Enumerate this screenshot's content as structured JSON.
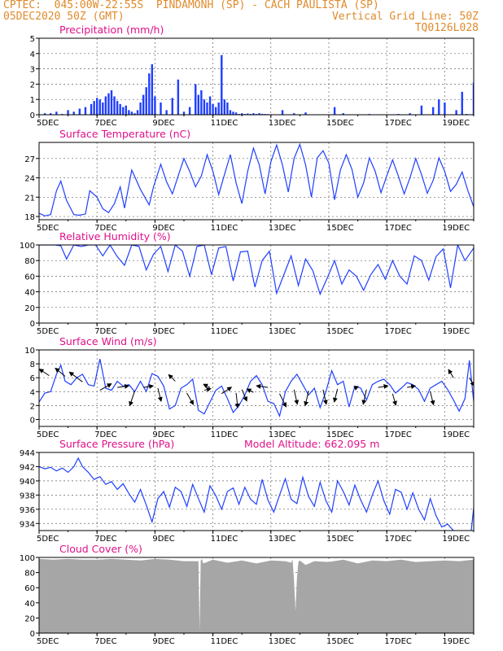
{
  "header": {
    "line1_left": "CPTEC:  045:00W-22:55S  PINDAMONH (SP) - CACH PAULISTA (SP)",
    "line2_left": "05DEC2020 50Z (GMT)",
    "line2_right": "Vertical Grid Line: 50Z",
    "line3_right": "TQ0126L028"
  },
  "colors": {
    "line": "#1f3fff",
    "bar": "#1f3fff",
    "cloud": "#a6a6a6",
    "title": "#e0108a",
    "header": "#e08a2c"
  },
  "chart_data": [
    {
      "type": "bar",
      "title": "Precipitation (mm/h)",
      "ylim": [
        0,
        5
      ],
      "yticks": [
        0,
        1,
        2,
        3,
        4,
        5
      ],
      "xticks": [
        "5DEC",
        "7DEC",
        "9DEC",
        "11DEC",
        "13DEC",
        "15DEC",
        "17DEC",
        "19DEC"
      ],
      "xlim_days": [
        0,
        15
      ],
      "x_days": [
        0.2,
        0.4,
        0.6,
        0.8,
        1.0,
        1.2,
        1.4,
        1.6,
        1.8,
        1.9,
        2.0,
        2.1,
        2.2,
        2.3,
        2.4,
        2.5,
        2.6,
        2.7,
        2.8,
        2.9,
        3.0,
        3.1,
        3.2,
        3.3,
        3.4,
        3.5,
        3.6,
        3.7,
        3.8,
        3.9,
        4.0,
        4.2,
        4.4,
        4.6,
        4.8,
        5.0,
        5.2,
        5.4,
        5.5,
        5.6,
        5.7,
        5.8,
        5.9,
        6.0,
        6.1,
        6.2,
        6.3,
        6.4,
        6.5,
        6.6,
        6.7,
        6.8,
        6.9,
        7.0,
        7.1,
        7.2,
        7.3,
        7.4,
        7.5,
        7.6,
        7.7,
        7.8,
        7.9,
        8.4,
        8.8,
        9.2,
        10.2,
        10.5,
        11.4,
        12.4,
        12.8,
        13.2,
        13.6,
        13.8,
        14.0,
        14.4,
        14.6,
        14.75,
        15.0
      ],
      "values": [
        0.1,
        0.1,
        0.2,
        0.05,
        0.3,
        0.2,
        0.4,
        0.5,
        0.7,
        0.9,
        1.1,
        1.0,
        0.8,
        1.2,
        1.4,
        1.6,
        1.2,
        0.9,
        0.7,
        0.5,
        0.6,
        0.3,
        0.2,
        0.1,
        0.3,
        0.8,
        1.3,
        1.8,
        2.7,
        3.3,
        1.2,
        0.8,
        0.3,
        1.1,
        2.3,
        0.2,
        0.5,
        2.0,
        1.3,
        1.6,
        1.0,
        0.8,
        1.2,
        0.7,
        0.5,
        0.8,
        3.9,
        1.0,
        0.8,
        0.3,
        0.2,
        0.15,
        0.05,
        0.1,
        0.05,
        0.08,
        0.05,
        0.1,
        0.05,
        0.1,
        0.06,
        0.05,
        0.04,
        0.3,
        0.1,
        0.15,
        0.5,
        0.1,
        0.05,
        0.05,
        0.1,
        0.6,
        0.5,
        1.0,
        0.8,
        0.3,
        1.5,
        0.05,
        2.1
      ]
    },
    {
      "type": "line",
      "title": "Surface Temperature (nC)",
      "ylim": [
        17.5,
        29.5
      ],
      "yticks": [
        18,
        21,
        24,
        27
      ],
      "xticks": [
        "5DEC",
        "7DEC",
        "9DEC",
        "11DEC",
        "13DEC",
        "15DEC",
        "17DEC",
        "19DEC"
      ],
      "xlim_days": [
        0,
        15
      ],
      "x_days": [
        0,
        0.2,
        0.4,
        0.6,
        0.75,
        0.95,
        1.2,
        1.4,
        1.6,
        1.75,
        2.0,
        2.2,
        2.4,
        2.6,
        2.8,
        2.95,
        3.2,
        3.5,
        3.8,
        3.95,
        4.2,
        4.4,
        4.6,
        4.8,
        5.0,
        5.2,
        5.4,
        5.6,
        5.8,
        6.0,
        6.2,
        6.4,
        6.6,
        6.8,
        7.0,
        7.2,
        7.4,
        7.6,
        7.8,
        8.0,
        8.2,
        8.4,
        8.6,
        8.8,
        9.0,
        9.2,
        9.4,
        9.6,
        9.8,
        10.0,
        10.2,
        10.4,
        10.6,
        10.8,
        11.0,
        11.2,
        11.4,
        11.6,
        11.8,
        12.0,
        12.2,
        12.4,
        12.6,
        12.8,
        13.0,
        13.2,
        13.4,
        13.6,
        13.8,
        14.0,
        14.2,
        14.4,
        14.6,
        14.8,
        15.0
      ],
      "values": [
        18.5,
        18.1,
        18.3,
        22.0,
        23.5,
        20.5,
        18.3,
        18.2,
        18.4,
        22.0,
        21.0,
        19.2,
        18.6,
        20.0,
        22.6,
        19.3,
        25.2,
        22.2,
        19.8,
        22.6,
        26.1,
        23.4,
        21.5,
        24.3,
        27.0,
        25.0,
        22.6,
        24.3,
        27.6,
        25.0,
        21.4,
        24.5,
        27.6,
        23.2,
        20.0,
        25.0,
        28.6,
        26.0,
        21.5,
        26.5,
        29.1,
        26.0,
        21.8,
        27.0,
        29.2,
        26.0,
        21.0,
        27.1,
        28.2,
        26.3,
        20.6,
        25.2,
        27.6,
        25.3,
        21.0,
        23.2,
        27.1,
        25.0,
        21.7,
        24.3,
        26.8,
        24.3,
        21.5,
        24.0,
        27.0,
        24.5,
        21.6,
        23.6,
        27.1,
        25.0,
        21.9,
        23.0,
        24.9,
        22.0,
        19.5
      ]
    },
    {
      "type": "line",
      "title": "Relative Humidity (%)",
      "ylim": [
        0,
        100
      ],
      "yticks": [
        0,
        20,
        40,
        60,
        80,
        100
      ],
      "xticks": [
        "5DEC",
        "7DEC",
        "9DEC",
        "11DEC",
        "13DEC",
        "15DEC",
        "17DEC",
        "19DEC"
      ],
      "xlim_days": [
        0,
        15
      ],
      "x_days": [
        0,
        0.3,
        0.55,
        0.75,
        0.95,
        1.2,
        1.45,
        1.7,
        1.95,
        2.2,
        2.45,
        2.7,
        2.95,
        3.2,
        3.45,
        3.7,
        3.95,
        4.2,
        4.45,
        4.7,
        4.95,
        5.2,
        5.45,
        5.7,
        5.95,
        6.2,
        6.45,
        6.7,
        6.95,
        7.2,
        7.45,
        7.7,
        7.95,
        8.2,
        8.45,
        8.7,
        8.95,
        9.2,
        9.45,
        9.7,
        9.95,
        10.2,
        10.45,
        10.7,
        10.95,
        11.2,
        11.45,
        11.7,
        11.95,
        12.2,
        12.45,
        12.7,
        12.95,
        13.2,
        13.45,
        13.7,
        13.95,
        14.2,
        14.45,
        14.7,
        15.0
      ],
      "values": [
        100,
        100,
        100,
        99,
        82,
        100,
        98,
        100,
        100,
        86,
        100,
        85,
        74,
        100,
        98,
        68,
        88,
        98,
        66,
        100,
        92,
        60,
        98,
        100,
        62,
        96,
        98,
        54,
        91,
        92,
        46,
        80,
        92,
        38,
        62,
        86,
        48,
        82,
        67,
        37,
        58,
        80,
        50,
        68,
        60,
        42,
        62,
        75,
        56,
        80,
        60,
        50,
        86,
        80,
        55,
        85,
        95,
        45,
        100,
        80,
        96
      ]
    },
    {
      "type": "line",
      "title": "Surface Wind (m/s)",
      "ylim": [
        -1,
        10
      ],
      "yticks": [
        0,
        2,
        4,
        6,
        8,
        10
      ],
      "xticks": [
        "5DEC",
        "7DEC",
        "9DEC",
        "11DEC",
        "13DEC",
        "15DEC",
        "17DEC",
        "19DEC"
      ],
      "xlim_days": [
        0,
        15
      ],
      "x_days": [
        0,
        0.2,
        0.4,
        0.6,
        0.75,
        0.9,
        1.1,
        1.3,
        1.5,
        1.7,
        1.9,
        2.1,
        2.3,
        2.5,
        2.7,
        2.9,
        3.1,
        3.3,
        3.5,
        3.7,
        3.9,
        4.1,
        4.3,
        4.5,
        4.7,
        4.9,
        5.1,
        5.3,
        5.5,
        5.7,
        5.9,
        6.1,
        6.3,
        6.5,
        6.7,
        6.9,
        7.1,
        7.3,
        7.5,
        7.7,
        7.9,
        8.1,
        8.3,
        8.5,
        8.7,
        8.9,
        9.1,
        9.3,
        9.5,
        9.7,
        9.9,
        10.1,
        10.3,
        10.5,
        10.7,
        10.9,
        11.1,
        11.3,
        11.5,
        11.7,
        11.9,
        12.1,
        12.3,
        12.5,
        12.7,
        12.9,
        13.1,
        13.3,
        13.5,
        13.7,
        13.9,
        14.1,
        14.3,
        14.5,
        14.7,
        14.85,
        15.0
      ],
      "values": [
        2.5,
        3.8,
        4.0,
        6.5,
        7.8,
        5.5,
        5.0,
        6.0,
        6.5,
        5.0,
        4.8,
        8.7,
        4.5,
        4.2,
        5.5,
        4.8,
        5.0,
        4.0,
        5.5,
        4.0,
        6.6,
        6.2,
        4.8,
        1.5,
        2.0,
        4.5,
        5.0,
        5.8,
        1.3,
        0.8,
        2.5,
        4.2,
        4.8,
        3.0,
        1.0,
        2.0,
        3.5,
        5.5,
        6.3,
        5.0,
        2.6,
        2.3,
        0.5,
        4.0,
        5.5,
        6.5,
        5.0,
        3.5,
        4.5,
        1.7,
        4.0,
        7.0,
        5.0,
        5.5,
        1.8,
        4.8,
        4.5,
        2.8,
        5.0,
        5.5,
        5.8,
        5.0,
        3.8,
        4.5,
        5.3,
        5.0,
        4.3,
        2.6,
        4.5,
        5.0,
        5.5,
        4.3,
        2.8,
        1.2,
        3.0,
        8.5,
        2.6
      ]
    },
    {
      "type": "line",
      "title": "Surface Pressure (hPa)",
      "annotation": "Model Altitude: 662.095 m",
      "ylim": [
        933,
        944
      ],
      "yticks": [
        934,
        936,
        938,
        940,
        942,
        944
      ],
      "xticks": [
        "5DEC",
        "7DEC",
        "9DEC",
        "11DEC",
        "13DEC",
        "15DEC",
        "17DEC",
        "19DEC"
      ],
      "xlim_days": [
        0,
        15
      ],
      "x_days": [
        0,
        0.2,
        0.4,
        0.6,
        0.8,
        1.0,
        1.2,
        1.35,
        1.5,
        1.7,
        1.9,
        2.1,
        2.3,
        2.5,
        2.7,
        2.9,
        3.1,
        3.3,
        3.5,
        3.7,
        3.9,
        4.1,
        4.3,
        4.5,
        4.7,
        4.9,
        5.1,
        5.3,
        5.5,
        5.7,
        5.9,
        6.1,
        6.3,
        6.5,
        6.7,
        6.9,
        7.1,
        7.3,
        7.5,
        7.7,
        7.9,
        8.1,
        8.3,
        8.5,
        8.7,
        8.9,
        9.1,
        9.3,
        9.5,
        9.7,
        9.9,
        10.1,
        10.3,
        10.5,
        10.7,
        10.9,
        11.1,
        11.3,
        11.5,
        11.7,
        11.9,
        12.1,
        12.3,
        12.5,
        12.7,
        12.9,
        13.1,
        13.3,
        13.5,
        13.7,
        13.9,
        14.1,
        14.3,
        14.5,
        14.7,
        14.9,
        15.0
      ],
      "values": [
        942.0,
        941.7,
        941.9,
        941.4,
        941.8,
        941.2,
        942.0,
        943.2,
        942.0,
        941.2,
        940.2,
        940.6,
        939.5,
        939.9,
        938.8,
        939.6,
        938.2,
        937.0,
        938.8,
        936.6,
        934.2,
        937.5,
        938.5,
        936.3,
        939.1,
        938.5,
        936.4,
        939.5,
        937.5,
        935.6,
        939.3,
        937.9,
        936.0,
        938.5,
        939.0,
        936.7,
        939.1,
        937.4,
        936.7,
        940.2,
        937.3,
        935.6,
        938.0,
        940.3,
        937.4,
        936.8,
        940.5,
        937.8,
        936.4,
        939.8,
        937.2,
        935.6,
        940.0,
        938.5,
        936.6,
        939.4,
        937.3,
        935.6,
        938.0,
        940.0,
        937.2,
        935.3,
        938.8,
        938.4,
        936.0,
        938.3,
        936.0,
        934.5,
        937.5,
        935.1,
        933.5,
        933.9,
        933.0,
        932.5,
        931.7,
        932.4,
        936.2
      ]
    },
    {
      "type": "area",
      "title": "Cloud Cover (%)",
      "ylim": [
        0,
        100
      ],
      "yticks": [
        0,
        20,
        40,
        60,
        80,
        100
      ],
      "xticks": [
        "5DEC",
        "7DEC",
        "9DEC",
        "11DEC",
        "13DEC",
        "15DEC",
        "17DEC",
        "19DEC"
      ],
      "xlim_days": [
        0,
        15
      ],
      "x_days": [
        0,
        0.5,
        1.0,
        1.5,
        2.0,
        2.5,
        3.0,
        3.5,
        4.0,
        4.5,
        5.0,
        5.5,
        5.54,
        5.58,
        5.62,
        5.66,
        5.8,
        6.0,
        6.5,
        7.0,
        7.5,
        8.0,
        8.5,
        8.7,
        8.75,
        8.8,
        8.85,
        8.9,
        8.95,
        9.0,
        9.2,
        9.5,
        10.0,
        10.5,
        11.0,
        11.5,
        12.0,
        12.5,
        13.0,
        13.5,
        14.0,
        14.5,
        15.0
      ],
      "values": [
        98,
        97,
        98,
        97,
        97,
        98,
        97,
        96,
        98,
        97,
        95,
        95,
        3,
        96,
        98,
        92,
        94,
        97,
        93,
        96,
        92,
        96,
        95,
        93,
        97,
        68,
        29,
        72,
        94,
        96,
        90,
        95,
        94,
        97,
        92,
        96,
        95,
        97,
        94,
        95,
        96,
        95,
        97
      ]
    }
  ]
}
